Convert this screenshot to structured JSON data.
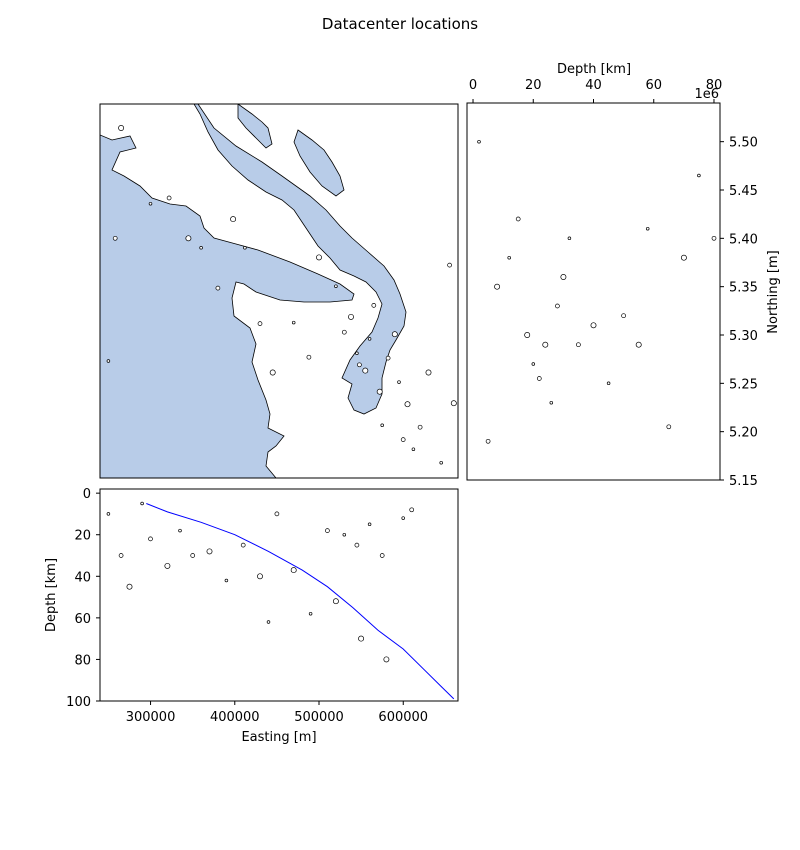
{
  "figure": {
    "title": "Datacenter locations"
  },
  "chart_data": [
    {
      "panel": "map",
      "type": "scatter",
      "title": "",
      "xlabel": "",
      "ylabel": "",
      "x_range": [
        240000,
        665000
      ],
      "y_range": [
        5150000,
        5540000
      ],
      "axes_visible": false,
      "colors": {
        "land": "#b8cce8",
        "coastline": "#000000",
        "marker_edge": "#000000",
        "marker_face": "#ffffff"
      },
      "description_of_points": "open black circles, sizes scaled by magnitude; dense cluster in the south-east",
      "sample_points": [
        [
          250000,
          5272000
        ],
        [
          258000,
          5400000
        ],
        [
          265000,
          5515000
        ],
        [
          300000,
          5436000
        ],
        [
          322000,
          5442000
        ],
        [
          345000,
          5400000
        ],
        [
          360000,
          5390000
        ],
        [
          380000,
          5348000
        ],
        [
          398000,
          5420000
        ],
        [
          412000,
          5390000
        ],
        [
          430000,
          5311000
        ],
        [
          445000,
          5260000
        ],
        [
          470000,
          5312000
        ],
        [
          488000,
          5276000
        ],
        [
          500000,
          5380000
        ],
        [
          520000,
          5350000
        ],
        [
          530000,
          5302000
        ],
        [
          538000,
          5318000
        ],
        [
          545000,
          5280000
        ],
        [
          548000,
          5268000
        ],
        [
          555000,
          5262000
        ],
        [
          560000,
          5295000
        ],
        [
          565000,
          5330000
        ],
        [
          572000,
          5240000
        ],
        [
          575000,
          5205000
        ],
        [
          582000,
          5275000
        ],
        [
          590000,
          5300000
        ],
        [
          595000,
          5250000
        ],
        [
          600000,
          5190000
        ],
        [
          605000,
          5227000
        ],
        [
          612000,
          5180000
        ],
        [
          620000,
          5203000
        ],
        [
          630000,
          5260000
        ],
        [
          645000,
          5166000
        ],
        [
          655000,
          5372000
        ],
        [
          660000,
          5228000
        ]
      ]
    },
    {
      "panel": "depth_vs_northing",
      "type": "scatter",
      "xlabel": "Depth [km]",
      "ylabel": "Northing [m]",
      "x_range": [
        -2,
        82
      ],
      "y_range": [
        5150000,
        5540000
      ],
      "x_ticks": [
        "0",
        "20",
        "40",
        "60",
        "80"
      ],
      "y_ticks": [
        "5.15",
        "5.20",
        "5.25",
        "5.30",
        "5.35",
        "5.40",
        "5.45",
        "5.50"
      ],
      "y_offset_text": "1e6",
      "sample_points": [
        [
          2,
          5500000
        ],
        [
          5,
          5190000
        ],
        [
          8,
          5350000
        ],
        [
          12,
          5380000
        ],
        [
          15,
          5420000
        ],
        [
          18,
          5300000
        ],
        [
          20,
          5270000
        ],
        [
          22,
          5255000
        ],
        [
          24,
          5290000
        ],
        [
          26,
          5230000
        ],
        [
          28,
          5330000
        ],
        [
          30,
          5360000
        ],
        [
          32,
          5400000
        ],
        [
          35,
          5290000
        ],
        [
          40,
          5310000
        ],
        [
          45,
          5250000
        ],
        [
          50,
          5320000
        ],
        [
          55,
          5290000
        ],
        [
          58,
          5410000
        ],
        [
          65,
          5205000
        ],
        [
          70,
          5380000
        ],
        [
          75,
          5465000
        ],
        [
          80,
          5400000
        ]
      ]
    },
    {
      "panel": "easting_vs_depth",
      "type": "scatter",
      "xlabel": "Easting [m]",
      "ylabel": "Depth [km]",
      "x_range": [
        240000,
        665000
      ],
      "y_range": [
        100,
        -2
      ],
      "x_ticks": [
        "300000",
        "400000",
        "500000",
        "600000"
      ],
      "y_ticks": [
        "0",
        "20",
        "40",
        "60",
        "80",
        "100"
      ],
      "sample_points": [
        [
          250000,
          10
        ],
        [
          265000,
          30
        ],
        [
          275000,
          45
        ],
        [
          290000,
          5
        ],
        [
          300000,
          22
        ],
        [
          320000,
          35
        ],
        [
          335000,
          18
        ],
        [
          350000,
          30
        ],
        [
          370000,
          28
        ],
        [
          390000,
          42
        ],
        [
          410000,
          25
        ],
        [
          430000,
          40
        ],
        [
          440000,
          62
        ],
        [
          450000,
          10
        ],
        [
          470000,
          37
        ],
        [
          490000,
          58
        ],
        [
          510000,
          18
        ],
        [
          520000,
          52
        ],
        [
          530000,
          20
        ],
        [
          545000,
          25
        ],
        [
          550000,
          70
        ],
        [
          560000,
          15
        ],
        [
          575000,
          30
        ],
        [
          580000,
          80
        ],
        [
          600000,
          12
        ],
        [
          610000,
          8
        ]
      ],
      "slab_line": {
        "color": "#0000ff",
        "points": [
          [
            295000,
            5
          ],
          [
            320000,
            9
          ],
          [
            360000,
            14
          ],
          [
            400000,
            20
          ],
          [
            440000,
            28
          ],
          [
            480000,
            37
          ],
          [
            510000,
            45
          ],
          [
            540000,
            55
          ],
          [
            570000,
            66
          ],
          [
            600000,
            75
          ],
          [
            625000,
            85
          ],
          [
            645000,
            93
          ],
          [
            660000,
            99
          ]
        ]
      }
    }
  ]
}
